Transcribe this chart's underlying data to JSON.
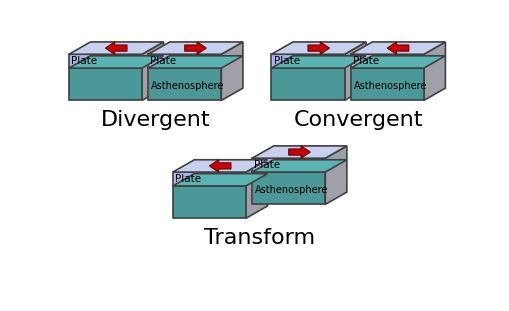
{
  "background_color": "#ffffff",
  "plate_front_color": "#aab4e8",
  "plate_top_color": "#c8d0f0",
  "side_color": "#a0a0a8",
  "asth_front_color": "#4a9898",
  "asth_side_color": "#386868",
  "asth_top_color": "#5ab4b4",
  "border_color": "#404040",
  "arrow_body_color": "#cc0000",
  "arrow_edge_color": "#660000",
  "label_plate": "Plate",
  "label_asth": "Asthenosphere",
  "label_divergent": "Divergent",
  "label_convergent": "Convergent",
  "label_transform": "Transform",
  "title_fontsize": 16,
  "small_fontsize": 7.5,
  "lw": 1.2
}
